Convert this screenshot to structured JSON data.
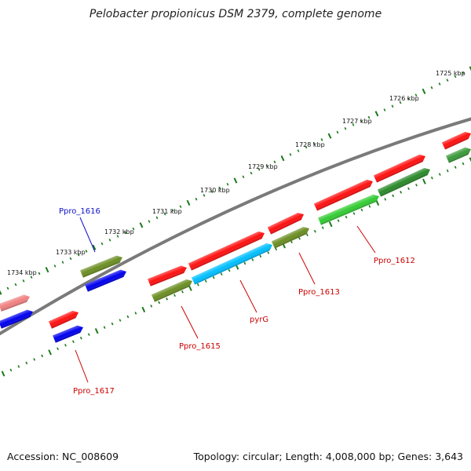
{
  "title": "Pelobacter propionicus DSM 2379, complete genome",
  "footer": {
    "accession": "Accession: NC_008609",
    "topology": "Topology: circular; Length: 4,008,000 bp; Genes: 3,643"
  },
  "colors": {
    "backbone": "#7a7a7a",
    "ticks": "#1a7a1a",
    "label_plus": "#1010cc",
    "label_minus": "#cc0000"
  },
  "scale": {
    "kbp_labels": [
      "1725 kbp",
      "1726 kbp",
      "1727 kbp",
      "1728 kbp",
      "1729 kbp",
      "1730 kbp",
      "1731 kbp",
      "1732 kbp",
      "1733 kbp",
      "1734 kbp"
    ]
  },
  "features": [
    {
      "name": "gene-partial-edge-right",
      "label": "",
      "color": "#ff1010"
    },
    {
      "name": "cds-partial-edge-right",
      "label": "",
      "color": "#3a9a3a"
    },
    {
      "name": "gene-ppro-1612",
      "label": "",
      "color": "#ff1010"
    },
    {
      "name": "cds-ppro-1612",
      "label": "",
      "color": "#2a8a2a"
    },
    {
      "name": "gene-block",
      "label": "",
      "color": "#ff1010"
    },
    {
      "name": "cds-block",
      "label": "",
      "color": "#33cc33"
    },
    {
      "name": "gene-ppro-1613",
      "label": "",
      "color": "#ff1010"
    },
    {
      "name": "cds-ppro-1613",
      "label": "",
      "color": "#6b8e23"
    },
    {
      "name": "gene-pyrg",
      "label": "",
      "color": "#ff1010"
    },
    {
      "name": "cds-pyrg",
      "label": "",
      "color": "#00bfff"
    },
    {
      "name": "gene-ppro-1615",
      "label": "",
      "color": "#ff1010"
    },
    {
      "name": "cds-ppro-1615",
      "label": "",
      "color": "#6b8e23"
    },
    {
      "name": "cds-ppro-1616-upper",
      "label": "",
      "color": "#6b8e23"
    },
    {
      "name": "cds-ppro-1616-lower",
      "label": "",
      "color": "#0000ee"
    },
    {
      "name": "gene-ppro-1617",
      "label": "",
      "color": "#ff1010"
    },
    {
      "name": "cds-ppro-1617",
      "label": "",
      "color": "#0000ee"
    },
    {
      "name": "gene-partial-edge-left",
      "label": "",
      "color": "#f08080"
    },
    {
      "name": "cds-partial-edge-left",
      "label": "",
      "color": "#0000ee"
    }
  ],
  "gene_labels": [
    {
      "name": "label-ppro-1612",
      "text": "Ppro_1612",
      "strand": "minus"
    },
    {
      "name": "label-ppro-1613",
      "text": "Ppro_1613",
      "strand": "minus"
    },
    {
      "name": "label-pyrg",
      "text": "pyrG",
      "strand": "minus"
    },
    {
      "name": "label-ppro-1615",
      "text": "Ppro_1615",
      "strand": "minus"
    },
    {
      "name": "label-ppro-1616",
      "text": "Ppro_1616",
      "strand": "plus"
    },
    {
      "name": "label-ppro-1617",
      "text": "Ppro_1617",
      "strand": "minus"
    }
  ]
}
